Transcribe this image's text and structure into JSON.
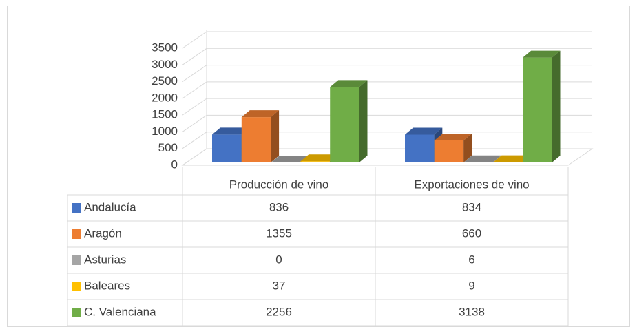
{
  "chart_data": {
    "type": "bar3d",
    "categories": [
      "Producción de vino",
      "Exportaciones de vino"
    ],
    "series": [
      {
        "name": "Andalucía",
        "color": "#4472c4",
        "values": [
          836,
          834
        ]
      },
      {
        "name": "Aragón",
        "color": "#ed7d31",
        "values": [
          1355,
          660
        ]
      },
      {
        "name": "Asturias",
        "color": "#a5a5a5",
        "values": [
          0,
          6
        ]
      },
      {
        "name": "Baleares",
        "color": "#ffc000",
        "values": [
          37,
          9
        ]
      },
      {
        "name": "C. Valenciana",
        "color": "#70ad47",
        "values": [
          2256,
          3138
        ]
      }
    ],
    "ylim": [
      0,
      3500
    ],
    "yticks": [
      0,
      500,
      1000,
      1500,
      2000,
      2500,
      3000,
      3500
    ],
    "grid": true,
    "data_table": true
  }
}
